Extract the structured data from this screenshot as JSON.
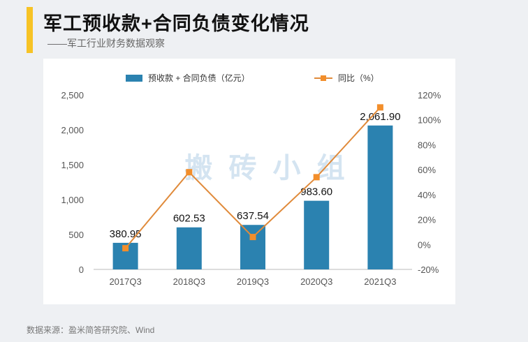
{
  "header": {
    "title": "军工预收款+合同负债变化情况",
    "subtitle": "——军工行业财务数据观察"
  },
  "footer": {
    "source": "数据来源：盈米简答研究院、Wind"
  },
  "watermark": "搬 砖 小 组",
  "colors": {
    "bar": "#2b82b0",
    "line": "#e08a3a",
    "marker": "#f28e2b",
    "accent": "#f7c325"
  },
  "chart_data": {
    "type": "bar",
    "title": "军工预收款+合同负债变化情况",
    "categories": [
      "2017Q3",
      "2018Q3",
      "2019Q3",
      "2020Q3",
      "2021Q3"
    ],
    "series": [
      {
        "name": "预收款 + 合同负债（亿元）",
        "type": "bar",
        "axis": "left",
        "values": [
          380.95,
          602.53,
          637.54,
          983.6,
          2061.9
        ],
        "labels": [
          "380.95",
          "602.53",
          "637.54",
          "983.60",
          "2,061.90"
        ]
      },
      {
        "name": "同比（%）",
        "type": "line",
        "axis": "right",
        "values": [
          -3,
          58,
          6,
          54,
          110
        ]
      }
    ],
    "y_left": {
      "min": 0,
      "max": 2500,
      "ticks": [
        0,
        500,
        1000,
        1500,
        2000,
        2500
      ],
      "tick_labels": [
        "0",
        "500",
        "1,000",
        "1,500",
        "2,000",
        "2,500"
      ]
    },
    "y_right": {
      "min": -20,
      "max": 120,
      "ticks": [
        -20,
        0,
        20,
        40,
        60,
        80,
        100,
        120
      ],
      "tick_labels": [
        "-20%",
        "0%",
        "20%",
        "40%",
        "60%",
        "80%",
        "100%",
        "120%"
      ]
    },
    "legend_position": "top",
    "grid": false
  }
}
